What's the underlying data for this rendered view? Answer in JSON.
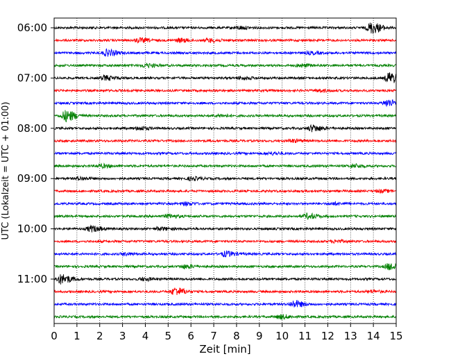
{
  "chart_data": {
    "type": "line",
    "title": "",
    "xlabel": "Zeit  [min]",
    "ylabel": "UTC (Lokalzeit = UTC + 01:00)",
    "xlim": [
      0,
      15
    ],
    "x_ticks": [
      "0",
      "1",
      "2",
      "3",
      "4",
      "5",
      "6",
      "7",
      "8",
      "9",
      "10",
      "11",
      "12",
      "13",
      "14",
      "15"
    ],
    "y_ticks": [
      {
        "label": "06:00",
        "trace_index": 0
      },
      {
        "label": "07:00",
        "trace_index": 4
      },
      {
        "label": "08:00",
        "trace_index": 8
      },
      {
        "label": "09:00",
        "trace_index": 12
      },
      {
        "label": "10:00",
        "trace_index": 16
      },
      {
        "label": "11:00",
        "trace_index": 20
      }
    ],
    "grid": "vertical dotted at each minute",
    "trace_interval_minutes": 15,
    "color_cycle": [
      "#000000",
      "#ff0000",
      "#0000ff",
      "#008000"
    ],
    "traces": [
      {
        "start": "06:00",
        "events": [
          {
            "t": 13.9,
            "amp": 1.0
          },
          {
            "t": 8.1,
            "amp": 0.25
          }
        ]
      },
      {
        "start": "06:15",
        "events": [
          {
            "t": 3.7,
            "amp": 0.35
          },
          {
            "t": 5.5,
            "amp": 0.3
          },
          {
            "t": 6.8,
            "amp": 0.3
          }
        ]
      },
      {
        "start": "06:30",
        "events": [
          {
            "t": 2.3,
            "amp": 0.55
          },
          {
            "t": 11.2,
            "amp": 0.2
          }
        ]
      },
      {
        "start": "06:45",
        "events": [
          {
            "t": 4.0,
            "amp": 0.3
          },
          {
            "t": 10.8,
            "amp": 0.25
          }
        ]
      },
      {
        "start": "07:00",
        "events": [
          {
            "t": 14.7,
            "amp": 1.0
          },
          {
            "t": 2.2,
            "amp": 0.4
          },
          {
            "t": 8.2,
            "amp": 0.25
          }
        ]
      },
      {
        "start": "07:15",
        "events": [
          {
            "t": 11.6,
            "amp": 0.2
          }
        ]
      },
      {
        "start": "07:30",
        "events": [
          {
            "t": 14.6,
            "amp": 0.6
          }
        ]
      },
      {
        "start": "07:45",
        "events": [
          {
            "t": 0.5,
            "amp": 1.0
          },
          {
            "t": 7.2,
            "amp": 0.2
          }
        ]
      },
      {
        "start": "08:00",
        "events": [
          {
            "t": 11.3,
            "amp": 0.55
          },
          {
            "t": 3.7,
            "amp": 0.3
          }
        ]
      },
      {
        "start": "08:15",
        "events": [
          {
            "t": 10.4,
            "amp": 0.25
          }
        ]
      },
      {
        "start": "08:30",
        "events": [
          {
            "t": 9.5,
            "amp": 0.2
          }
        ]
      },
      {
        "start": "08:45",
        "events": [
          {
            "t": 2.0,
            "amp": 0.3
          },
          {
            "t": 13.1,
            "amp": 0.3
          }
        ]
      },
      {
        "start": "09:00",
        "events": [
          {
            "t": 1.1,
            "amp": 0.25
          },
          {
            "t": 6.0,
            "amp": 0.25
          }
        ]
      },
      {
        "start": "09:15",
        "events": [
          {
            "t": 14.3,
            "amp": 0.2
          }
        ]
      },
      {
        "start": "09:30",
        "events": [
          {
            "t": 5.7,
            "amp": 0.25
          },
          {
            "t": 12.2,
            "amp": 0.2
          }
        ]
      },
      {
        "start": "09:45",
        "events": [
          {
            "t": 11.1,
            "amp": 0.45
          },
          {
            "t": 5.0,
            "amp": 0.3
          }
        ]
      },
      {
        "start": "10:00",
        "events": [
          {
            "t": 1.6,
            "amp": 0.5
          },
          {
            "t": 4.6,
            "amp": 0.25
          }
        ]
      },
      {
        "start": "10:15",
        "events": [
          {
            "t": 12.3,
            "amp": 0.2
          }
        ]
      },
      {
        "start": "10:30",
        "events": [
          {
            "t": 7.5,
            "amp": 0.45
          },
          {
            "t": 3.1,
            "amp": 0.2
          }
        ]
      },
      {
        "start": "10:45",
        "events": [
          {
            "t": 14.7,
            "amp": 0.6
          },
          {
            "t": 5.7,
            "amp": 0.3
          }
        ]
      },
      {
        "start": "11:00",
        "events": [
          {
            "t": 0.3,
            "amp": 0.85
          },
          {
            "t": 3.9,
            "amp": 0.25
          }
        ]
      },
      {
        "start": "11:15",
        "events": [
          {
            "t": 5.3,
            "amp": 0.7
          },
          {
            "t": 13.9,
            "amp": 0.2
          }
        ]
      },
      {
        "start": "11:30",
        "events": [
          {
            "t": 10.5,
            "amp": 0.6
          }
        ]
      },
      {
        "start": "11:45",
        "events": [
          {
            "t": 9.9,
            "amp": 0.35
          }
        ]
      }
    ]
  }
}
